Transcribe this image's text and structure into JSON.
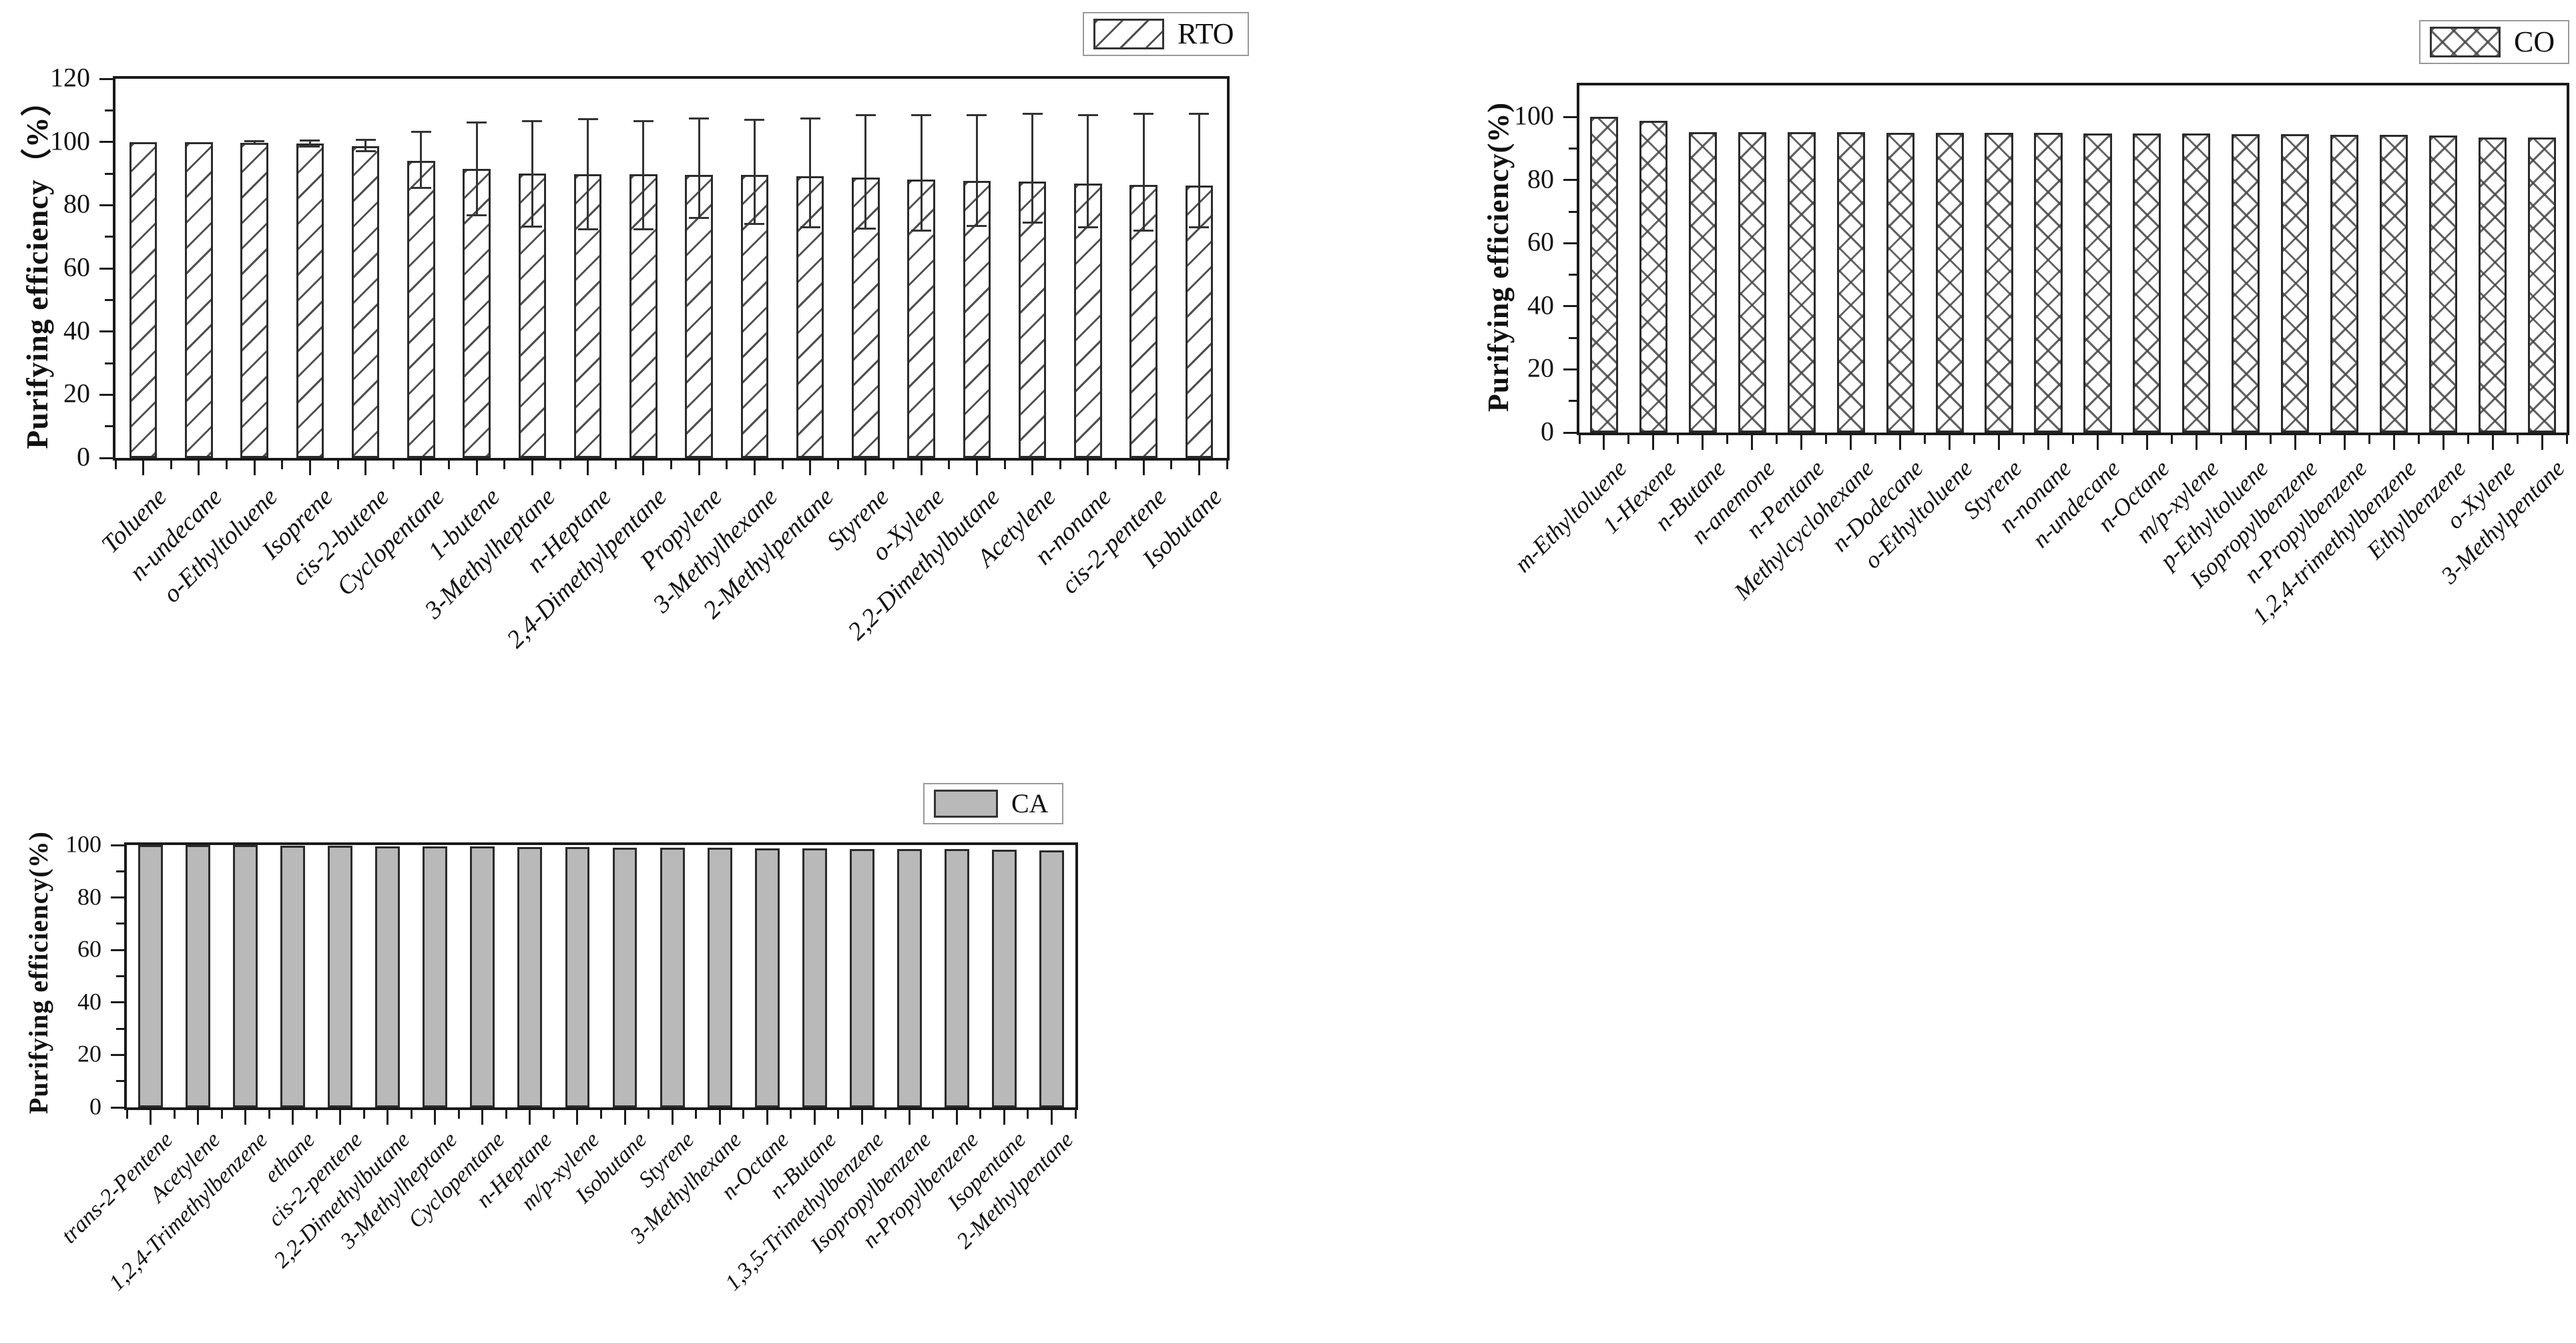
{
  "figure": {
    "background": "#ffffff",
    "ink_color": "#1a1a1a",
    "gray_bar_fill": "#b9b9b9"
  },
  "chart_data": [
    {
      "id": "rto",
      "type": "bar",
      "legend_label": "RTO",
      "legend_position": "top-right",
      "bar_style": "diagonal-hatch",
      "ylabel": "Purifying  efficiency（%）",
      "xlabel": "",
      "ylim": [
        0,
        120
      ],
      "yticks": [
        0,
        20,
        40,
        60,
        80,
        100,
        120
      ],
      "grid": false,
      "categories": [
        "Toluene",
        "n-undecane",
        "o-Ethyltoluene",
        "Isoprene",
        "cis-2-butene",
        "Cyclopentane",
        "1-butene",
        "3-Methylheptane",
        "n-Heptane",
        "2,4-Dimethylpentane",
        "Propylene",
        "3-Methylhexane",
        "2-Methylpentane",
        "Styrene",
        "o-Xylene",
        "2,2-Dimethylbutane",
        "Acetylene",
        "n-nonane",
        "cis-2-pentene",
        "Isobutane"
      ],
      "values": [
        100,
        100,
        99.8,
        99.5,
        98.7,
        94.1,
        91.4,
        90.1,
        89.8,
        89.7,
        89.6,
        89.5,
        89.2,
        88.8,
        88.2,
        87.6,
        87.4,
        86.8,
        86.5,
        86.2
      ],
      "error_up": [
        0,
        0,
        0.5,
        1.0,
        2.0,
        9.1,
        14.7,
        16.4,
        17.5,
        16.8,
        17.9,
        17.5,
        18.3,
        19.7,
        20.3,
        20.9,
        21.6,
        21.7,
        22.5,
        22.8
      ],
      "error_down": [
        0,
        0,
        0.5,
        1.0,
        1.7,
        8.6,
        14.5,
        16.9,
        17.4,
        17.3,
        13.6,
        15.5,
        16.2,
        16.3,
        16.2,
        14.1,
        12.9,
        13.8,
        14.5,
        13.2
      ]
    },
    {
      "id": "co",
      "type": "bar",
      "legend_label": "CO",
      "legend_position": "top-right",
      "bar_style": "cross-hatch",
      "ylabel": "Purifying efficiency(%)",
      "xlabel": "",
      "ylim": [
        0,
        110
      ],
      "yticks": [
        0,
        20,
        40,
        60,
        80,
        100
      ],
      "grid": false,
      "categories": [
        "m-Ethyltoluene",
        "1-Hexene",
        "n-Butane",
        "n-anemone",
        "n-Pentane",
        "Methylcyclohexane",
        "n-Dodecane",
        "o-Ethyltoluene",
        "Styrene",
        "n-nonane",
        "n-undecane",
        "n-Octane",
        "m/p-xylene",
        "p-Ethyltoluene",
        "Isopropylbenzene",
        "n-Propylbenzene",
        "1,2,4-trimethylbenzene",
        "Ethylbenzene",
        "o-Xylene",
        "3-Methylpentane"
      ],
      "values": [
        100,
        98.8,
        95.3,
        95.2,
        95.1,
        95.1,
        95.0,
        95.0,
        94.9,
        94.9,
        94.8,
        94.8,
        94.7,
        94.6,
        94.5,
        94.4,
        94.3,
        94.2,
        93.5,
        93.4
      ],
      "error_up": [
        0,
        0,
        0,
        0,
        0,
        0,
        0,
        0,
        0,
        0,
        0,
        0,
        0,
        0,
        0,
        0,
        0,
        0,
        0,
        0
      ],
      "error_down": [
        0,
        0,
        0,
        0,
        0,
        0,
        0,
        0,
        0,
        0,
        0,
        0,
        0,
        0,
        0,
        0,
        0,
        0,
        0,
        0
      ]
    },
    {
      "id": "ca",
      "type": "bar",
      "legend_label": "CA",
      "legend_position": "top-right",
      "bar_style": "solid-gray",
      "ylabel": "Purifying efficiency(%)",
      "xlabel": "",
      "ylim": [
        0,
        100
      ],
      "yticks": [
        0,
        20,
        40,
        60,
        80,
        100
      ],
      "grid": false,
      "categories": [
        "trans-2-Pentene",
        "Acetylene",
        "1,2,4-Trimethylbenzene",
        "ethane",
        "cis-2-pentene",
        "2,2-Dimethylbutane",
        "3-Methylheptane",
        "Cyclopentane",
        "n-Heptane",
        "m/p-xylene",
        "Isobutane",
        "Styrene",
        "3-Methylhexane",
        "n-Octane",
        "n-Butane",
        "1,3,5-Trimethylbenzene",
        "Isopropylbenzene",
        "n-Propylbenzene",
        "Isopentane",
        "2-Methylpentane"
      ],
      "values": [
        100,
        100,
        99.9,
        99.8,
        99.7,
        99.6,
        99.5,
        99.4,
        99.3,
        99.2,
        99.1,
        99.0,
        98.9,
        98.8,
        98.7,
        98.6,
        98.5,
        98.4,
        98.2,
        98.0
      ],
      "error_up": [
        0,
        0,
        0,
        0,
        0,
        0,
        0,
        0,
        0,
        0,
        0,
        0,
        0,
        0,
        0,
        0,
        0,
        0,
        0,
        0
      ],
      "error_down": [
        0,
        0,
        0,
        0,
        0,
        0,
        0,
        0,
        0,
        0,
        0,
        0,
        0,
        0,
        0,
        0,
        0,
        0,
        0,
        0
      ]
    }
  ]
}
